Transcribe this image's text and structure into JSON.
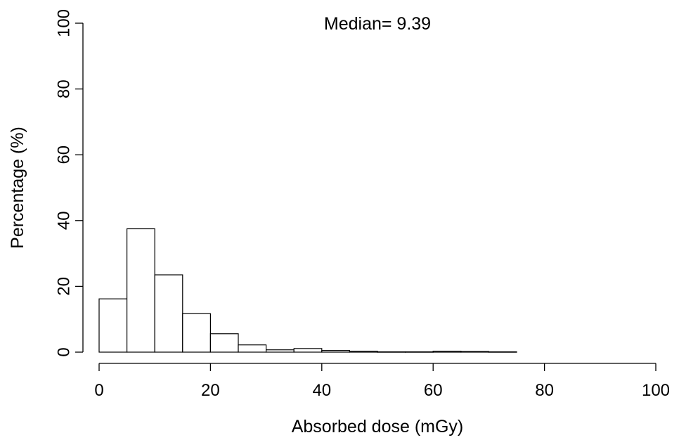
{
  "chart_data": {
    "type": "bar",
    "subtype": "histogram",
    "annotation": "Median= 9.39",
    "xlabel": "Absorbed dose (mGy)",
    "ylabel": "Percentage (%)",
    "xlim": [
      0,
      100
    ],
    "ylim": [
      0,
      100
    ],
    "x_ticks": [
      "0",
      "20",
      "40",
      "60",
      "80",
      "100"
    ],
    "y_ticks": [
      "0",
      "20",
      "40",
      "60",
      "80",
      "100"
    ],
    "bin_edges": [
      0,
      5,
      10,
      15,
      20,
      25,
      30,
      35,
      40,
      45,
      50,
      55,
      60,
      65,
      70,
      75
    ],
    "values": [
      16.2,
      37.5,
      23.5,
      11.7,
      5.6,
      2.2,
      0.7,
      1.1,
      0.5,
      0.3,
      0.1,
      0.1,
      0.3,
      0.2,
      0.1
    ],
    "grid": false,
    "legend": "none"
  }
}
